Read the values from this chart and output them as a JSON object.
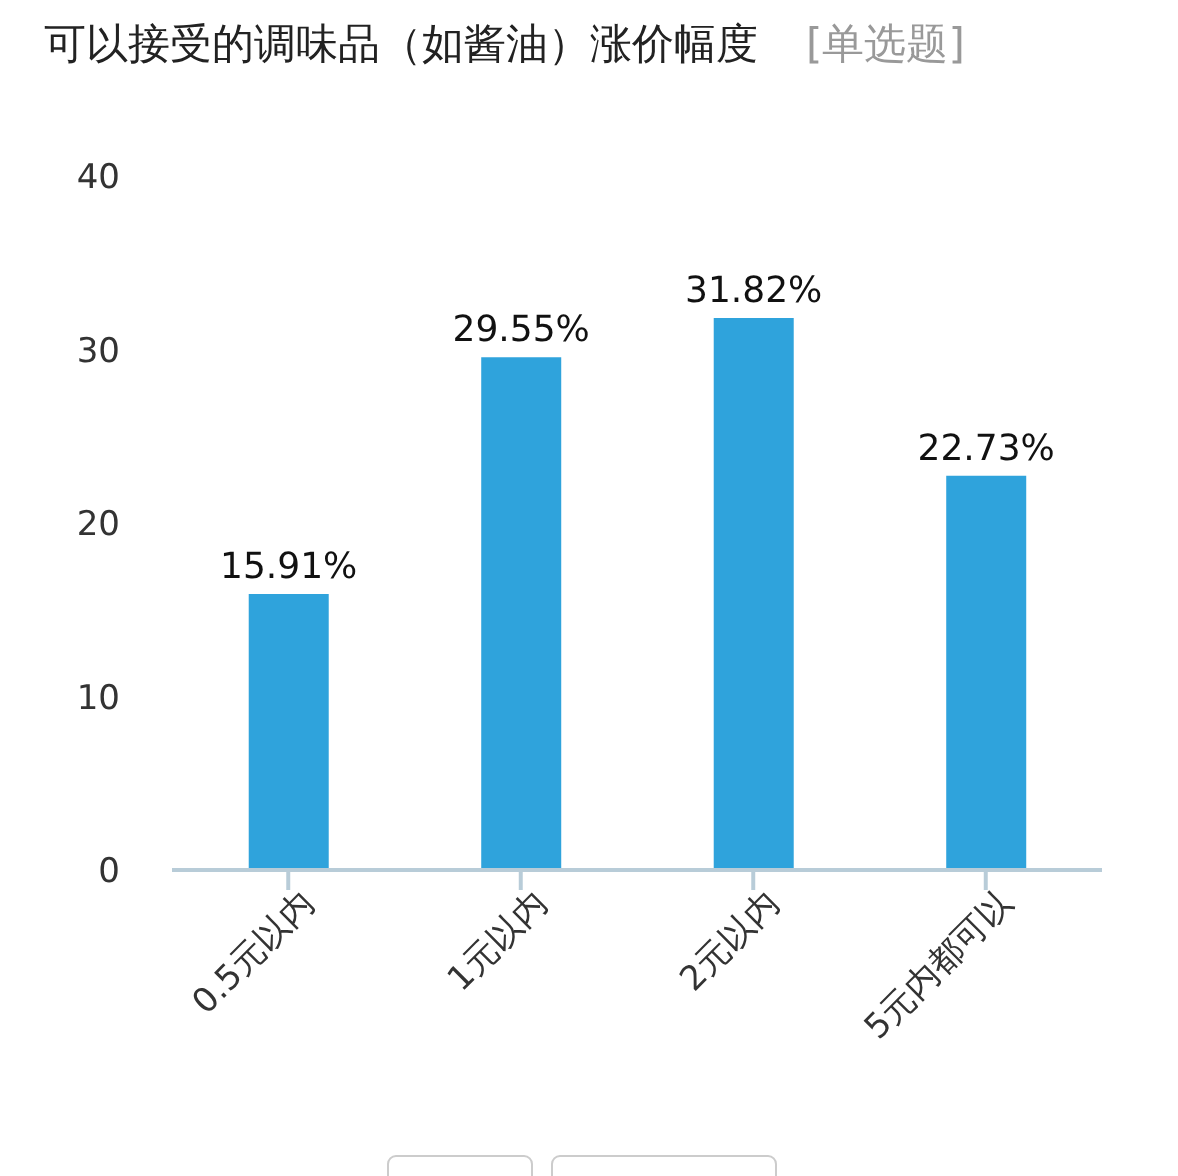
{
  "chart_data": {
    "type": "bar",
    "title": "可以接受的调味品（如酱油）涨价幅度",
    "subtitle": "[单选题]",
    "categories": [
      "0.5元以内",
      "1元以内",
      "2元以内",
      "5元内都可以"
    ],
    "values": [
      15.91,
      29.55,
      31.82,
      22.73
    ],
    "value_labels": [
      "15.91%",
      "29.55%",
      "31.82%",
      "22.73%"
    ],
    "color": "#2fa3dc",
    "ylim": [
      0,
      40
    ],
    "yticks": [
      0,
      10,
      20,
      30,
      40
    ],
    "grid": false,
    "legend": false
  }
}
